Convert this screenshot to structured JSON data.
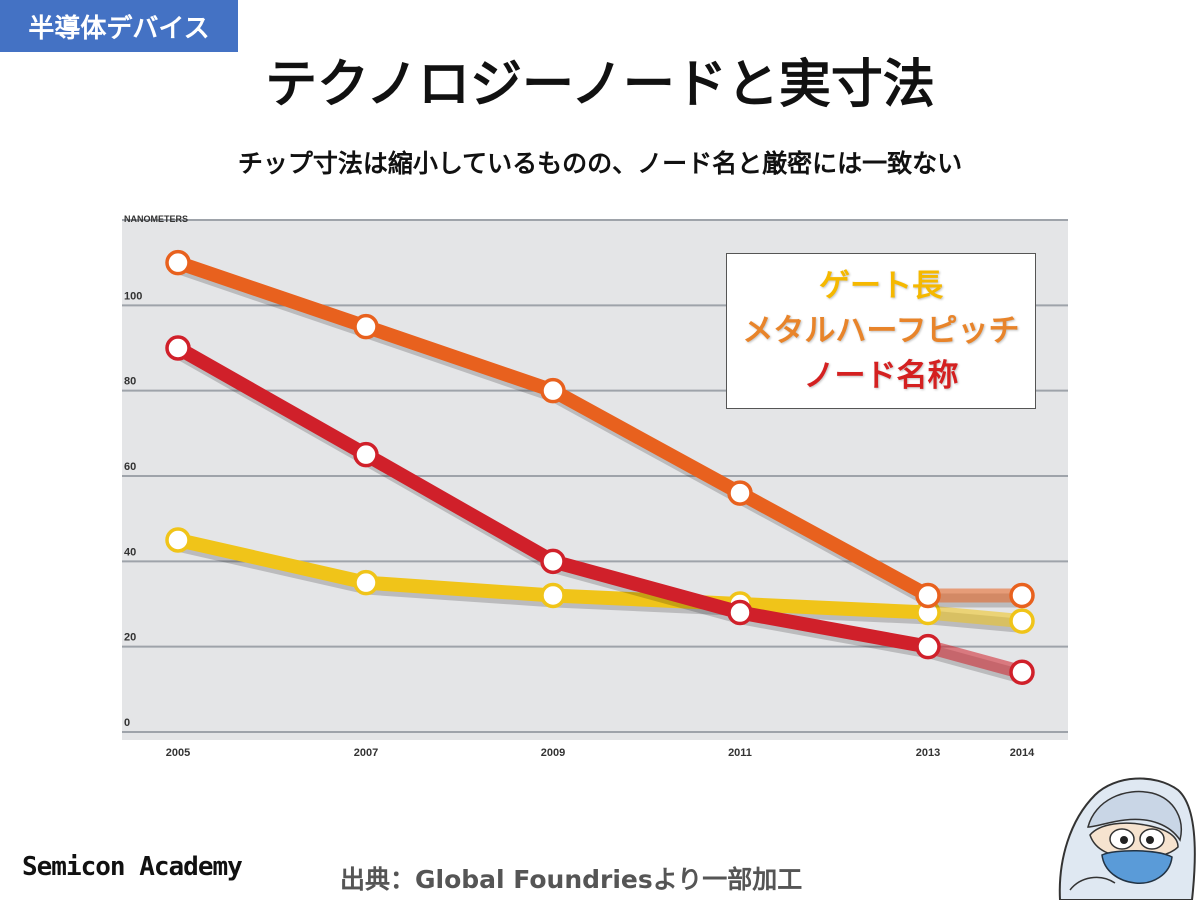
{
  "header": {
    "tag": "半導体デバイス",
    "title": "テクノロジーノードと実寸法",
    "subtitle": "チップ寸法は縮小しているものの、ノード名と厳密には一致ない"
  },
  "chart_data": {
    "type": "line",
    "ylabel": "NANOMETERS",
    "ylim": [
      0,
      120
    ],
    "yticks": [
      0,
      20,
      40,
      60,
      80,
      100
    ],
    "x": [
      "2005",
      "2007",
      "2009",
      "2011",
      "2013",
      "2014"
    ],
    "grid": true,
    "series": [
      {
        "name": "ゲート長",
        "color": "#f0c419",
        "values": [
          45,
          35,
          32,
          30,
          28,
          26
        ]
      },
      {
        "name": "メタルハーフピッチ",
        "color": "#e8611e",
        "values": [
          110,
          95,
          80,
          56,
          32,
          32
        ]
      },
      {
        "name": "ノード名称",
        "color": "#d0202a",
        "values": [
          90,
          65,
          40,
          28,
          20,
          14
        ]
      }
    ]
  },
  "legend": {
    "colors": [
      "#f5b800",
      "#e8842a",
      "#d42020"
    ]
  },
  "footer": {
    "brand": "Semicon Academy",
    "source": "出典：Global Foundriesより一部加工"
  }
}
